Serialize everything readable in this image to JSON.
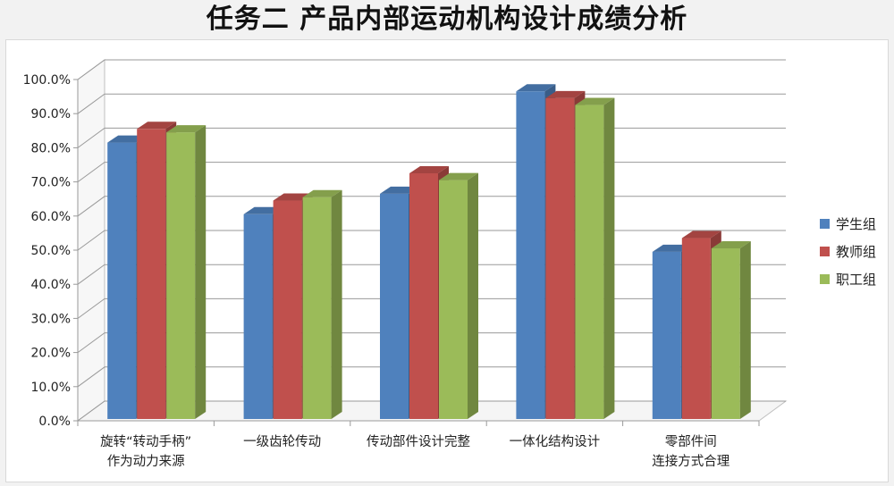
{
  "title": "任务二  产品内部运动机构设计成绩分析",
  "chart_data": {
    "type": "bar",
    "title": "任务二  产品内部运动机构设计成绩分析",
    "xlabel": "",
    "ylabel": "",
    "ylim": [
      0,
      1.0
    ],
    "y_ticks": [
      "0.0%",
      "10.0%",
      "20.0%",
      "30.0%",
      "40.0%",
      "50.0%",
      "60.0%",
      "70.0%",
      "80.0%",
      "90.0%",
      "100.0%"
    ],
    "grid": true,
    "legend_position": "right",
    "categories": [
      [
        "旋转“转动手柄”",
        "作为动力来源"
      ],
      [
        "一级齿轮传动"
      ],
      [
        "传动部件设计完整"
      ],
      [
        "一体化结构设计"
      ],
      [
        "零部件间",
        "连接方式合理"
      ]
    ],
    "series": [
      {
        "name": "学生组",
        "color": "#4f81bd",
        "values": [
          0.81,
          0.6,
          0.66,
          0.96,
          0.49
        ]
      },
      {
        "name": "教师组",
        "color": "#c0504d",
        "values": [
          0.85,
          0.64,
          0.72,
          0.94,
          0.53
        ]
      },
      {
        "name": "职工组",
        "color": "#9bbb59",
        "values": [
          0.84,
          0.65,
          0.7,
          0.92,
          0.5
        ]
      }
    ]
  }
}
